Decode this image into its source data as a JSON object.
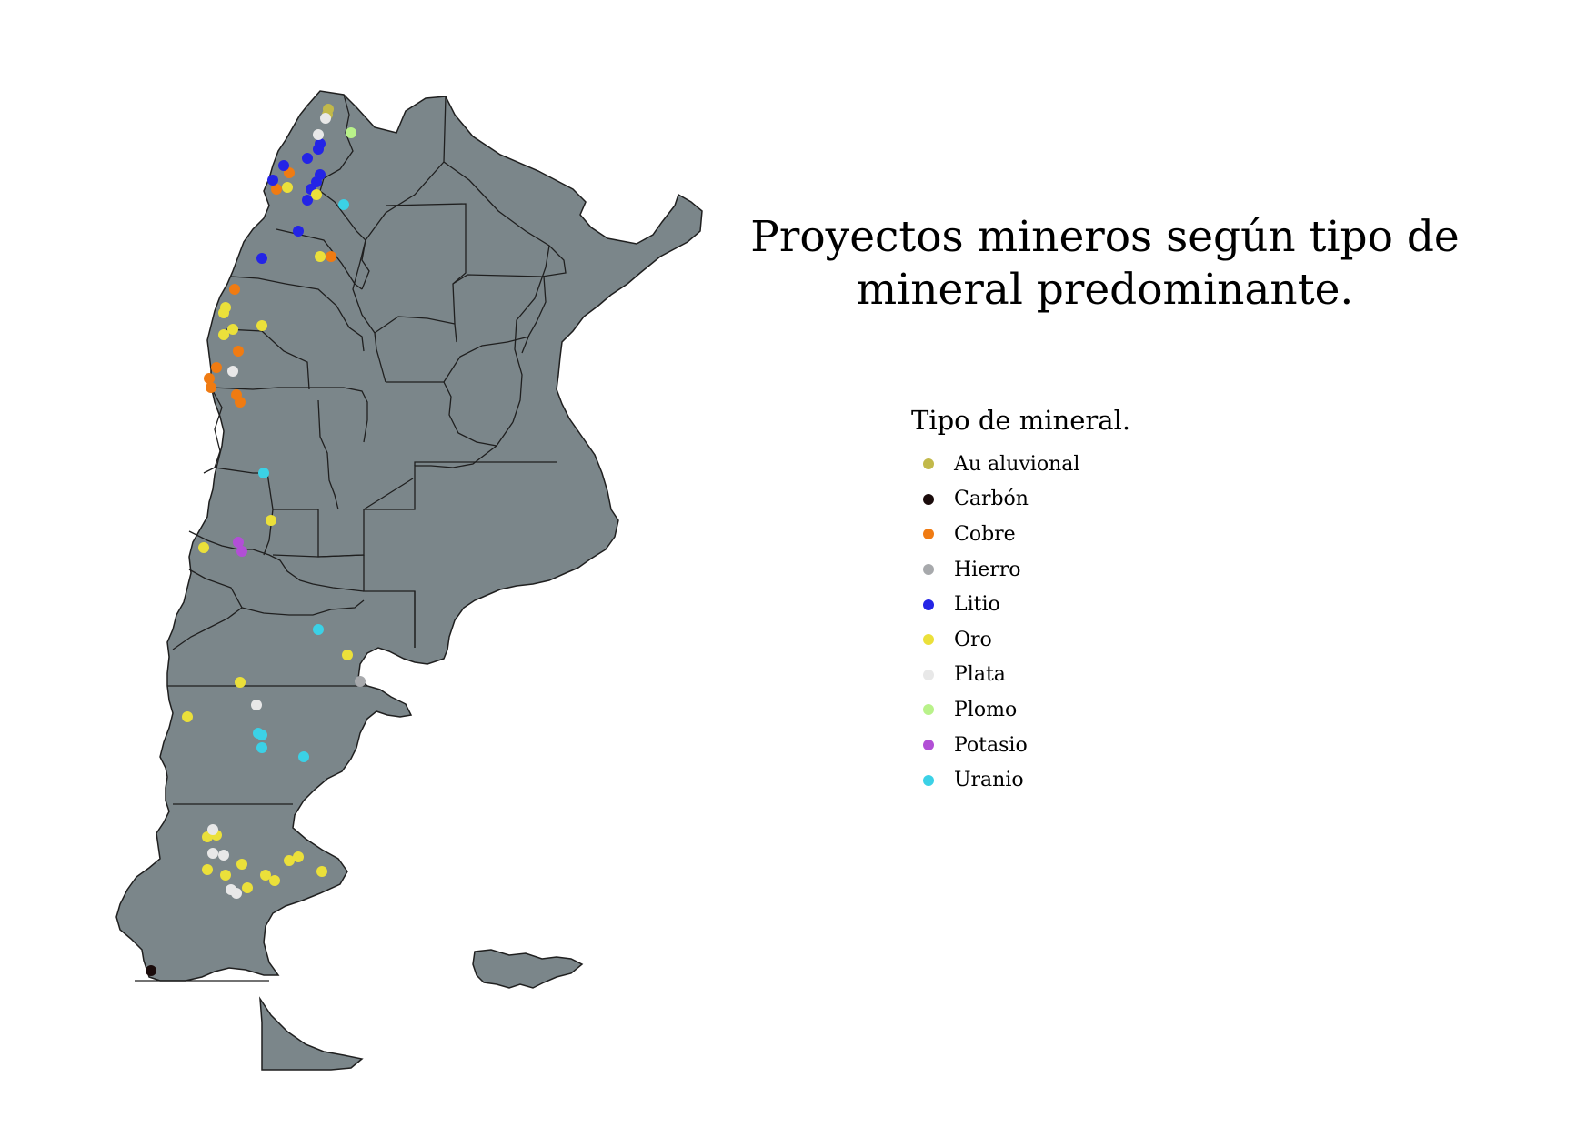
{
  "title_line1": "Proyectos mineros según tipo de",
  "title_line2": "mineral predominante.",
  "legend": {
    "title": "Tipo de mineral.",
    "items": [
      {
        "key": "au_aluvional",
        "label": "Au aluvional",
        "color": "#c2b94a"
      },
      {
        "key": "carbon",
        "label": "Carbón",
        "color": "#1a0b0b"
      },
      {
        "key": "cobre",
        "label": "Cobre",
        "color": "#f07b12"
      },
      {
        "key": "hierro",
        "label": "Hierro",
        "color": "#a7a9ac"
      },
      {
        "key": "litio",
        "label": "Litio",
        "color": "#2424e6"
      },
      {
        "key": "oro",
        "label": "Oro",
        "color": "#ebe03a"
      },
      {
        "key": "plata",
        "label": "Plata",
        "color": "#e8e8e8"
      },
      {
        "key": "plomo",
        "label": "Plomo",
        "color": "#b9f28a"
      },
      {
        "key": "potasio",
        "label": "Potasio",
        "color": "#b24fd6"
      },
      {
        "key": "uranio",
        "label": "Uranio",
        "color": "#3bd1e6"
      }
    ]
  },
  "map_colors": {
    "land": "#7b868a",
    "border": "#1f1f1f"
  }
}
